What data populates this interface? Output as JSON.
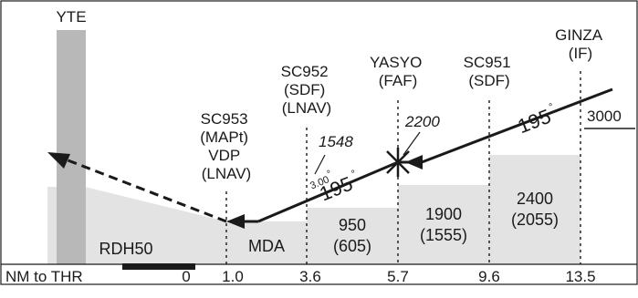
{
  "station_label": "YTE",
  "fixes": [
    {
      "id": "sc953",
      "lines": [
        "SC953",
        "(MAPt)",
        "VDP",
        "(LNAV)"
      ]
    },
    {
      "id": "sc952",
      "lines": [
        "SC952",
        "(SDF)",
        "(LNAV)"
      ]
    },
    {
      "id": "yasyo",
      "lines": [
        "YASYO",
        "(FAF)"
      ]
    },
    {
      "id": "sc951",
      "lines": [
        "SC951",
        "(SDF)"
      ]
    },
    {
      "id": "ginza",
      "lines": [
        "GINZA",
        "(IF)"
      ]
    }
  ],
  "crossing_altitudes": {
    "sc952": "1548",
    "yasyo": "2200"
  },
  "if_altitude": "3000",
  "course": {
    "final": "195",
    "initial": "195",
    "degree_mark": "°"
  },
  "glide_angle": "3.00",
  "mda_label": "MDA",
  "rdh_label": "RDH50",
  "step_minimums": [
    {
      "alt": "950",
      "height": "(605)"
    },
    {
      "alt": "1900",
      "height": "(1555)"
    },
    {
      "alt": "2400",
      "height": "(2055)"
    }
  ],
  "distance_scale": {
    "label": "NM to THR",
    "ticks": [
      "0",
      "1.0",
      "3.6",
      "5.7",
      "9.6",
      "13.5"
    ]
  },
  "colors": {
    "terrain": "#e3e3e3",
    "tower": "#b8b8b8",
    "ink": "#1a1a1a"
  }
}
